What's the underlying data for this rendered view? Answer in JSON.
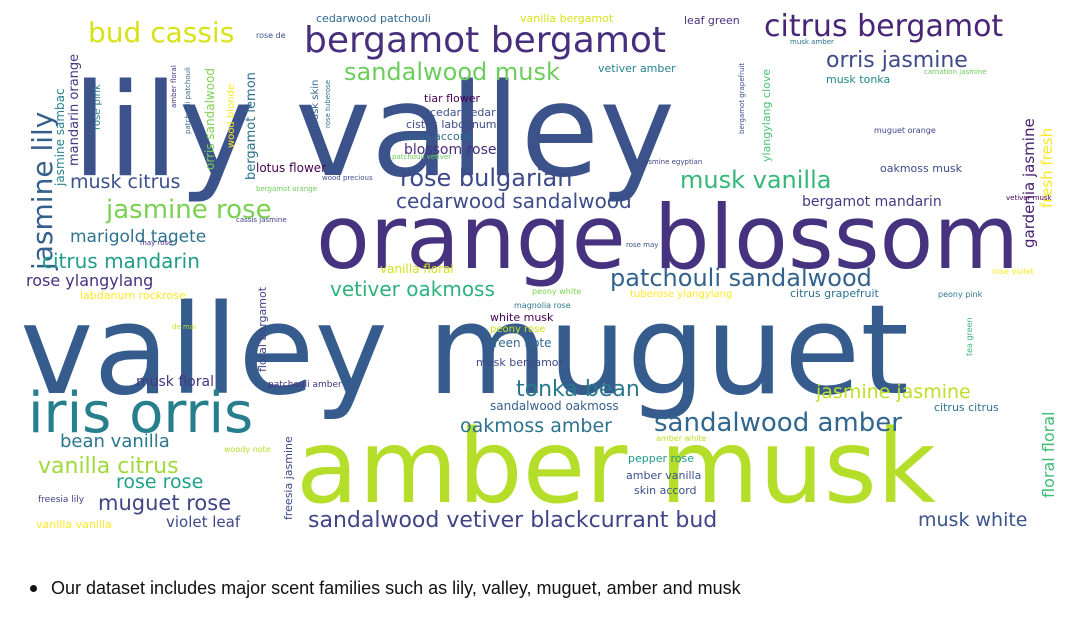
{
  "caption": "Our dataset includes major scent families such as lily, valley, muguet, amber and musk",
  "words": [
    {
      "text": "lily valley",
      "color": "#3b528b"
    },
    {
      "text": "orange blossom",
      "color": "#46327e"
    },
    {
      "text": "valley muguet",
      "color": "#365c8d"
    },
    {
      "text": "amber musk",
      "color": "#b5de2b"
    },
    {
      "text": "iris orris",
      "color": "#277f8e"
    },
    {
      "text": "bergamot bergamot",
      "color": "#472f7d"
    },
    {
      "text": "citrus bergamot",
      "color": "#482576"
    },
    {
      "text": "sandalwood musk",
      "color": "#6ccd5a"
    },
    {
      "text": "bud cassis",
      "color": "#d8e219"
    },
    {
      "text": "orris jasmine",
      "color": "#3e4a89"
    },
    {
      "text": "jasmine lily",
      "color": "#355f8d"
    },
    {
      "text": "rose bulgarian",
      "color": "#3e4989"
    },
    {
      "text": "musk vanilla",
      "color": "#35b779"
    },
    {
      "text": "musk citrus",
      "color": "#3b518b"
    },
    {
      "text": "jasmine rose",
      "color": "#7ad151"
    },
    {
      "text": "cedarwood sandalwood",
      "color": "#3e4c8a"
    },
    {
      "text": "marigold tagete",
      "color": "#2c728e"
    },
    {
      "text": "citrus mandarin",
      "color": "#1f9e89"
    },
    {
      "text": "patchouli sandalwood",
      "color": "#33638d"
    },
    {
      "text": "vetiver oakmoss",
      "color": "#2db27d"
    },
    {
      "text": "rose ylangylang",
      "color": "#46307e"
    },
    {
      "text": "tonka bean",
      "color": "#2a788e"
    },
    {
      "text": "jasmine jasmine",
      "color": "#bddf26"
    },
    {
      "text": "sandalwood amber",
      "color": "#31668e"
    },
    {
      "text": "oakmoss amber",
      "color": "#2d718e"
    },
    {
      "text": "bean vanilla",
      "color": "#2a768e"
    },
    {
      "text": "vanilla citrus",
      "color": "#a0da39"
    },
    {
      "text": "rose rose",
      "color": "#1fa188"
    },
    {
      "text": "muguet rose",
      "color": "#414487"
    },
    {
      "text": "sandalwood vetiver blackcurrant bud",
      "color": "#414487"
    },
    {
      "text": "musk white",
      "color": "#3b528b"
    },
    {
      "text": "violet leaf",
      "color": "#3e4989"
    },
    {
      "text": "floral floral",
      "color": "#3dbc74"
    },
    {
      "text": "fresh fresh",
      "color": "#fde725"
    },
    {
      "text": "gardenia jasmine",
      "color": "#482071"
    },
    {
      "text": "bergamot mandarin",
      "color": "#443a83"
    },
    {
      "text": "blossom rose",
      "color": "#472d7b"
    },
    {
      "text": "musk floral",
      "color": "#453882"
    },
    {
      "text": "bergamot lemon",
      "color": "#2c728e"
    },
    {
      "text": "mandarin orange",
      "color": "#443b84"
    },
    {
      "text": "jasmine sambac",
      "color": "#26828e"
    },
    {
      "text": "orris sandalwood",
      "color": "#7ad151"
    },
    {
      "text": "lotus flower",
      "color": "#440154"
    },
    {
      "text": "tiar flower",
      "color": "#440154"
    },
    {
      "text": "cedar cedar",
      "color": "#3b518b"
    },
    {
      "text": "cistus labdanum",
      "color": "#3e4a89"
    },
    {
      "text": "citrus accord",
      "color": "#2f6b8e"
    },
    {
      "text": "vetiver amber",
      "color": "#25838e"
    },
    {
      "text": "musk tonka",
      "color": "#23888e"
    },
    {
      "text": "ylangylang clove",
      "color": "#48c16e"
    },
    {
      "text": "oakmoss musk",
      "color": "#3e4c8a"
    },
    {
      "text": "white musk",
      "color": "#440154"
    },
    {
      "text": "peony rose",
      "color": "#c8e020"
    },
    {
      "text": "green note",
      "color": "#31688e"
    },
    {
      "text": "musk bergamot",
      "color": "#3e4a89"
    },
    {
      "text": "sandalwood oakmoss",
      "color": "#355f8d"
    },
    {
      "text": "pepper rose",
      "color": "#1f9a8a"
    },
    {
      "text": "amber vanilla",
      "color": "#3b528b"
    },
    {
      "text": "skin accord",
      "color": "#3b528b"
    },
    {
      "text": "citrus grapefruit",
      "color": "#2c728e"
    },
    {
      "text": "tuberose ylangylang",
      "color": "#fde725"
    },
    {
      "text": "vanilla floral",
      "color": "#d2e21b"
    },
    {
      "text": "labdanum rockrose",
      "color": "#fde725"
    },
    {
      "text": "floral bergamot",
      "color": "#414487"
    },
    {
      "text": "freesia jasmine",
      "color": "#3e4a89"
    },
    {
      "text": "cedarwood patchouli",
      "color": "#31688e"
    },
    {
      "text": "vanilla bergamot",
      "color": "#d8e219"
    },
    {
      "text": "leaf green",
      "color": "#46337f"
    },
    {
      "text": "musk skin",
      "color": "#31688e"
    },
    {
      "text": "wood blonde",
      "color": "#fde725"
    },
    {
      "text": "rose pink",
      "color": "#277f8e"
    },
    {
      "text": "citrus citrus",
      "color": "#2d718e"
    },
    {
      "text": "vanilla vanilla",
      "color": "#fde725"
    },
    {
      "text": "freesia lily",
      "color": "#414487"
    },
    {
      "text": "patchouli amber",
      "color": "#46327e"
    },
    {
      "text": "woody note",
      "color": "#b5de2b"
    },
    {
      "text": "amber white",
      "color": "#bddf26"
    },
    {
      "text": "magnolia rose",
      "color": "#2a788e"
    },
    {
      "text": "peony white",
      "color": "#7ad151"
    },
    {
      "text": "peony pink",
      "color": "#2a788e"
    },
    {
      "text": "rose violet",
      "color": "#fde725"
    },
    {
      "text": "tea green",
      "color": "#35b779"
    },
    {
      "text": "muguet orange",
      "color": "#414487"
    },
    {
      "text": "jasmine egyptian",
      "color": "#414487"
    },
    {
      "text": "bergamot grapefruit",
      "color": "#3b528b"
    },
    {
      "text": "musk amber",
      "color": "#2c728e"
    },
    {
      "text": "carnation jasmine",
      "color": "#6ccd5a"
    },
    {
      "text": "vetiver musk",
      "color": "#440154"
    },
    {
      "text": "rose de",
      "color": "#3b528b"
    },
    {
      "text": "bergamot orange",
      "color": "#6ccd5a"
    },
    {
      "text": "cassis jasmine",
      "color": "#414487"
    },
    {
      "text": "may rose",
      "color": "#472d7b"
    },
    {
      "text": "de mai",
      "color": "#bddf26"
    },
    {
      "text": "rose may",
      "color": "#3b528b"
    },
    {
      "text": "wood precious",
      "color": "#3b528b"
    },
    {
      "text": "patchouli vetiver",
      "color": "#6ccd5a"
    },
    {
      "text": "patchouli patchouli",
      "color": "#31688e"
    },
    {
      "text": "amber floral",
      "color": "#46327e"
    },
    {
      "text": "rose tuberose",
      "color": "#2c728e"
    }
  ]
}
